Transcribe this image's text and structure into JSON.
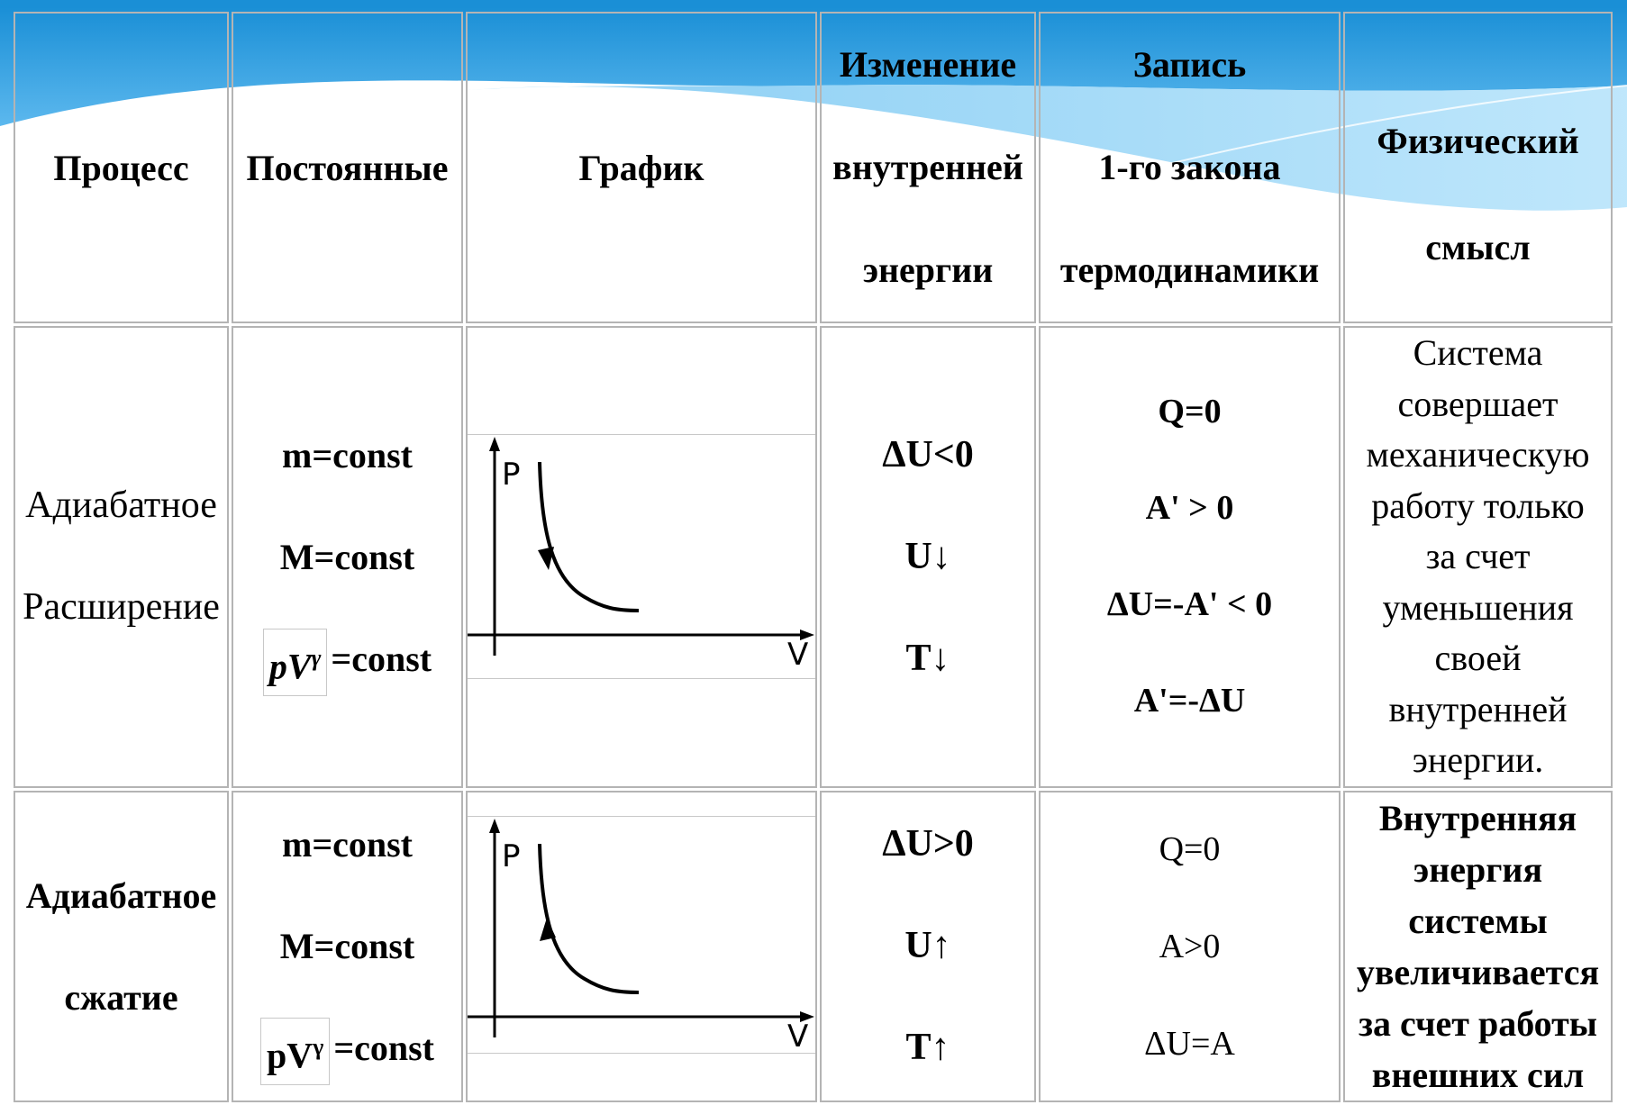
{
  "header": {
    "process": "Процесс",
    "constants": "Постоянные",
    "graph": "График",
    "energy_change": [
      "Изменение",
      "внутренней",
      "энергии"
    ],
    "first_law": [
      "Запись",
      "1-го закона",
      "термодинамики"
    ],
    "meaning": [
      "Физический",
      "смысл"
    ]
  },
  "rows": [
    {
      "process": [
        "Адиабатное",
        "Расширение"
      ],
      "constants": [
        "m=const",
        "M=const"
      ],
      "formula": "pV",
      "formula_exp": "γ",
      "formula_tail": "=const",
      "graph": {
        "y_label": "P",
        "x_label": "V"
      },
      "energy": [
        "ΔU<0",
        "U↓",
        "T↓"
      ],
      "law": [
        "Q=0",
        "A' > 0",
        "ΔU=-A' < 0",
        "A'=-ΔU"
      ],
      "meaning": [
        "Система",
        "совершает",
        "механическую",
        "работу только",
        "за счет",
        "уменьшения",
        "своей",
        "внутренней",
        "энергии."
      ]
    },
    {
      "process": [
        "Адиабатное",
        "сжатие"
      ],
      "constants": [
        "m=const",
        "M=const"
      ],
      "formula": "pV",
      "formula_exp": "γ",
      "formula_tail": "=const",
      "graph": {
        "y_label": "P",
        "x_label": "V"
      },
      "energy": [
        "ΔU>0",
        "U↑",
        "T↑"
      ],
      "law": [
        "Q=0",
        "A>0",
        "ΔU=A"
      ],
      "meaning": [
        "Внутренняя",
        "энергия",
        "системы",
        "увеличивается",
        "за счет работы",
        "внешних сил"
      ]
    }
  ],
  "colors": {
    "wave_dark": "#1a8fd6",
    "wave_light": "#8fd0f4",
    "border": "#b4b4b4"
  }
}
